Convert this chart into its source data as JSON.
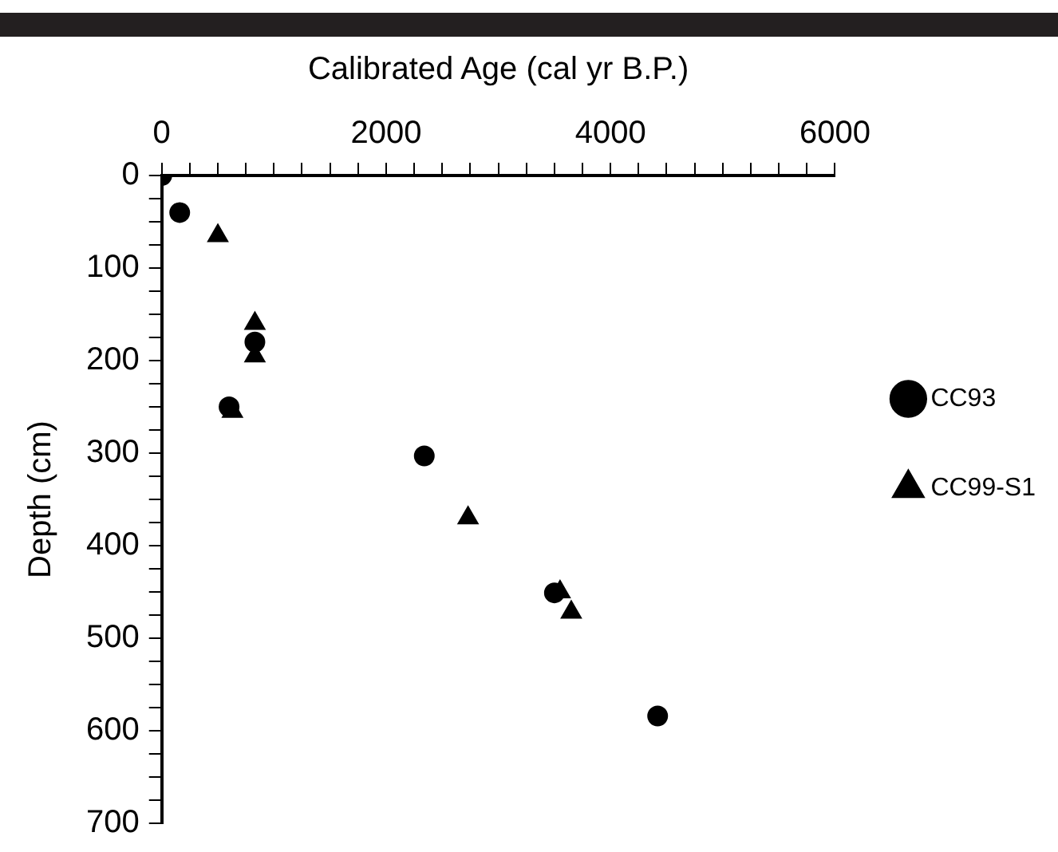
{
  "chart_data": {
    "type": "scatter",
    "xlabel": "Calibrated Age (cal yr B.P.)",
    "ylabel": "Depth (cm)",
    "xlim": [
      0,
      6000
    ],
    "xticks": [
      0,
      {
        "value": 250,
        "label": null
      },
      {
        "value": 500,
        "label": null
      },
      {
        "value": 750,
        "label": null
      },
      {
        "value": 1000,
        "label": null
      },
      {
        "value": 1250,
        "label": null
      },
      {
        "value": 1500,
        "label": null
      },
      {
        "value": 1750,
        "label": null
      },
      2000,
      {
        "value": 2250,
        "label": null
      },
      {
        "value": 2500,
        "label": null
      },
      {
        "value": 2750,
        "label": null
      },
      {
        "value": 3000,
        "label": null
      },
      {
        "value": 3250,
        "label": null
      },
      {
        "value": 3500,
        "label": null
      },
      {
        "value": 3750,
        "label": null
      },
      4000,
      {
        "value": 4250,
        "label": null
      },
      {
        "value": 4500,
        "label": null
      },
      {
        "value": 4750,
        "label": null
      },
      {
        "value": 5000,
        "label": null
      },
      {
        "value": 5250,
        "label": null
      },
      {
        "value": 5500,
        "label": null
      },
      {
        "value": 5750,
        "label": null
      },
      6000
    ],
    "ylim": [
      700,
      0
    ],
    "yticks": [
      0,
      {
        "value": 25,
        "label": null
      },
      {
        "value": 50,
        "label": null
      },
      {
        "value": 75,
        "label": null
      },
      100,
      {
        "value": 125,
        "label": null
      },
      {
        "value": 150,
        "label": null
      },
      {
        "value": 175,
        "label": null
      },
      200,
      {
        "value": 225,
        "label": null
      },
      {
        "value": 250,
        "label": null
      },
      {
        "value": 275,
        "label": null
      },
      300,
      {
        "value": 325,
        "label": null
      },
      {
        "value": 350,
        "label": null
      },
      {
        "value": 375,
        "label": null
      },
      400,
      {
        "value": 425,
        "label": null
      },
      {
        "value": 450,
        "label": null
      },
      {
        "value": 475,
        "label": null
      },
      500,
      {
        "value": 525,
        "label": null
      },
      {
        "value": 550,
        "label": null
      },
      {
        "value": 575,
        "label": null
      },
      600,
      {
        "value": 625,
        "label": null
      },
      {
        "value": 650,
        "label": null
      },
      {
        "value": 675,
        "label": null
      },
      700
    ],
    "grid": false,
    "legend": "right",
    "series": [
      {
        "name": "CC93",
        "color": "#000000",
        "marker": "circle",
        "x": [
          0,
          160,
          830,
          600,
          2340,
          3500,
          4420
        ],
        "values": [
          0,
          40,
          180,
          250,
          303,
          451,
          584
        ]
      },
      {
        "name": "CC99-S1",
        "color": "#000000",
        "marker": "triangle",
        "x": [
          500,
          830,
          830,
          630,
          2730,
          3550,
          3650
        ],
        "values": [
          65,
          160,
          195,
          255,
          370,
          450,
          472
        ]
      }
    ]
  }
}
